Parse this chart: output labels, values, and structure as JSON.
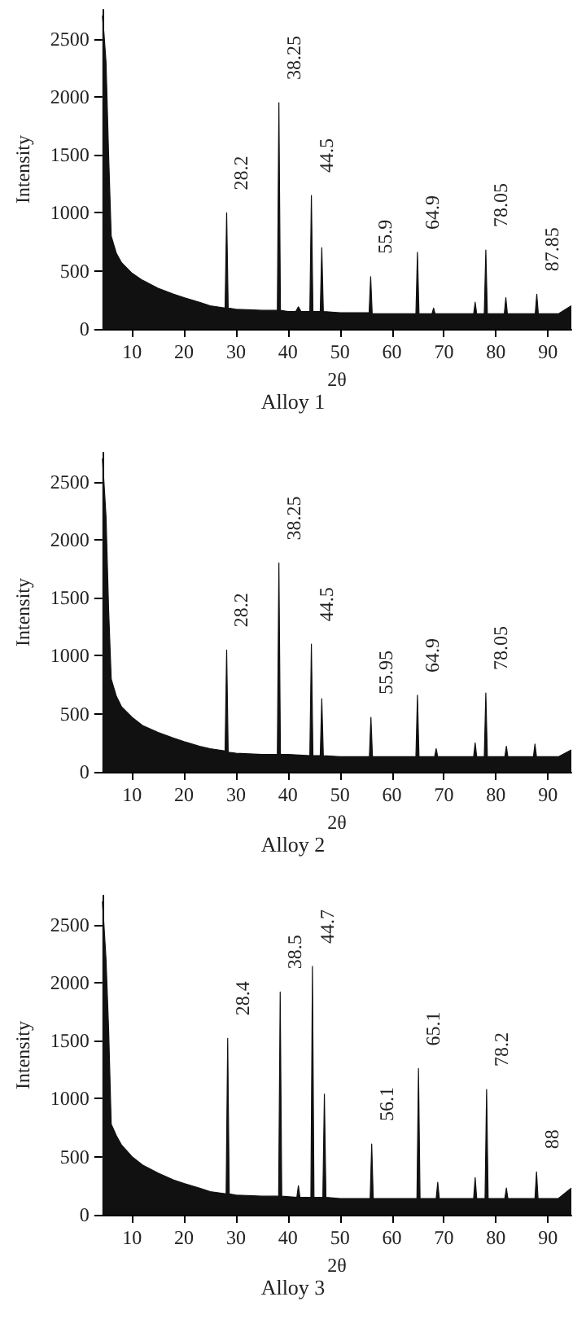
{
  "chart_data": [
    {
      "type": "area",
      "title": "Alloy 1",
      "xlabel": "2θ",
      "ylabel": "Intensity",
      "xlim": [
        4.3,
        94.5
      ],
      "xticks": [
        10,
        20,
        30,
        40,
        50,
        60,
        70,
        80,
        90
      ],
      "ylim": [
        0,
        2750
      ],
      "yticks": [
        0,
        500,
        1000,
        1500,
        2000,
        2500
      ],
      "series": [
        {
          "color": "#111111",
          "x": [
            4.3,
            4.6,
            5,
            5.5,
            6,
            7,
            8,
            10,
            12,
            15,
            18,
            20,
            23,
            25,
            27.9,
            28.2,
            28.5,
            30,
            35,
            37.95,
            38.25,
            38.55,
            40,
            41.5,
            42,
            42.5,
            44.2,
            44.5,
            44.8,
            46.2,
            46.5,
            46.8,
            50,
            55.6,
            55.9,
            56.2,
            60,
            64.6,
            64.9,
            65.2,
            67.7,
            68,
            68.3,
            72,
            75.7,
            76,
            76.3,
            77.75,
            78.05,
            78.35,
            81.6,
            81.9,
            82.2,
            85,
            87.55,
            87.85,
            88.15,
            92,
            94.5
          ],
          "values": [
            2700,
            2550,
            2300,
            1500,
            800,
            650,
            570,
            480,
            420,
            350,
            300,
            270,
            230,
            200,
            180,
            1000,
            180,
            170,
            160,
            160,
            1950,
            160,
            150,
            150,
            190,
            150,
            150,
            1150,
            150,
            150,
            700,
            150,
            140,
            140,
            450,
            130,
            130,
            130,
            660,
            130,
            130,
            180,
            130,
            130,
            130,
            230,
            130,
            130,
            680,
            130,
            130,
            270,
            130,
            130,
            130,
            300,
            130,
            130,
            200
          ]
        }
      ],
      "annotations": [
        {
          "text": "28.2",
          "x": 28.2,
          "y": 1000
        },
        {
          "text": "38.25",
          "x": 38.25,
          "y": 1950
        },
        {
          "text": "44.5",
          "x": 44.5,
          "y": 1150
        },
        {
          "text": "55.9",
          "x": 55.9,
          "y": 450
        },
        {
          "text": "64.9",
          "x": 64.9,
          "y": 660
        },
        {
          "text": "78.05",
          "x": 78.05,
          "y": 680
        },
        {
          "text": "87.85",
          "x": 87.85,
          "y": 300
        }
      ]
    },
    {
      "type": "area",
      "title": "Alloy 2",
      "xlabel": "2θ",
      "ylabel": "Intensity",
      "xlim": [
        4.3,
        94.5
      ],
      "xticks": [
        10,
        20,
        30,
        40,
        50,
        60,
        70,
        80,
        90
      ],
      "ylim": [
        0,
        2750
      ],
      "yticks": [
        0,
        500,
        1000,
        1500,
        2000,
        2500
      ],
      "series": [
        {
          "color": "#111111",
          "x": [
            4.3,
            4.6,
            5,
            5.5,
            6,
            7,
            8,
            10,
            12,
            15,
            18,
            20,
            23,
            25,
            27.9,
            28.2,
            28.5,
            30,
            35,
            37.95,
            38.25,
            38.55,
            40,
            44.2,
            44.5,
            44.8,
            46.2,
            46.5,
            46.8,
            50,
            55.65,
            55.95,
            56.25,
            60,
            64.6,
            64.9,
            65.2,
            68.2,
            68.5,
            68.8,
            72,
            75.7,
            76,
            76.3,
            77.75,
            78.05,
            78.35,
            81.7,
            82,
            82.3,
            85,
            87.2,
            87.5,
            87.8,
            92,
            94.5
          ],
          "values": [
            2700,
            2500,
            2200,
            1400,
            800,
            650,
            560,
            470,
            400,
            340,
            290,
            260,
            220,
            200,
            180,
            1050,
            170,
            160,
            150,
            150,
            1800,
            150,
            150,
            140,
            1100,
            140,
            140,
            630,
            140,
            130,
            130,
            470,
            130,
            130,
            130,
            660,
            130,
            130,
            200,
            130,
            130,
            130,
            250,
            130,
            130,
            680,
            130,
            130,
            220,
            130,
            130,
            130,
            240,
            130,
            130,
            190
          ]
        }
      ],
      "annotations": [
        {
          "text": "28.2",
          "x": 28.2,
          "y": 1050
        },
        {
          "text": "38.25",
          "x": 38.25,
          "y": 1800
        },
        {
          "text": "44.5",
          "x": 44.5,
          "y": 1100
        },
        {
          "text": "55.95",
          "x": 55.95,
          "y": 470
        },
        {
          "text": "64.9",
          "x": 64.9,
          "y": 660
        },
        {
          "text": "78.05",
          "x": 78.05,
          "y": 680
        }
      ]
    },
    {
      "type": "area",
      "title": "Alloy 3",
      "xlabel": "2θ",
      "ylabel": "Intensity",
      "xlim": [
        4.3,
        94.5
      ],
      "xticks": [
        10,
        20,
        30,
        40,
        50,
        60,
        70,
        80,
        90
      ],
      "ylim": [
        0,
        2750
      ],
      "yticks": [
        0,
        500,
        1000,
        1500,
        2000,
        2500
      ],
      "series": [
        {
          "color": "#111111",
          "x": [
            4.3,
            4.6,
            5,
            5.5,
            6,
            7,
            8,
            10,
            12,
            15,
            18,
            20,
            23,
            25,
            28.1,
            28.4,
            28.7,
            30,
            35,
            38.2,
            38.5,
            38.8,
            41.7,
            42,
            42.3,
            44.4,
            44.7,
            45,
            46.7,
            47,
            47.3,
            50,
            55.8,
            56.1,
            56.4,
            60,
            64.8,
            65.1,
            65.4,
            68.5,
            68.8,
            69.1,
            72,
            75.7,
            76,
            76.3,
            77.9,
            78.2,
            78.5,
            81.7,
            82,
            82.3,
            85,
            87.5,
            87.8,
            88.1,
            92,
            94.5
          ],
          "values": [
            2700,
            2500,
            2200,
            1600,
            780,
            680,
            600,
            500,
            430,
            360,
            300,
            270,
            230,
            200,
            180,
            1520,
            180,
            170,
            160,
            160,
            1920,
            160,
            150,
            250,
            150,
            150,
            2140,
            150,
            150,
            1040,
            150,
            140,
            140,
            610,
            140,
            140,
            140,
            1260,
            140,
            140,
            280,
            140,
            140,
            140,
            320,
            140,
            140,
            1080,
            140,
            140,
            230,
            140,
            140,
            140,
            370,
            140,
            140,
            230
          ]
        }
      ],
      "annotations": [
        {
          "text": "28.4",
          "x": 28.4,
          "y": 1520
        },
        {
          "text": "38.5",
          "x": 38.5,
          "y": 1920
        },
        {
          "text": "44.7",
          "x": 44.7,
          "y": 2140
        },
        {
          "text": "56.1",
          "x": 56.1,
          "y": 610
        },
        {
          "text": "65.1",
          "x": 65.1,
          "y": 1260
        },
        {
          "text": "78.2",
          "x": 78.2,
          "y": 1080
        },
        {
          "text": "88",
          "x": 88,
          "y": 370
        }
      ]
    }
  ]
}
